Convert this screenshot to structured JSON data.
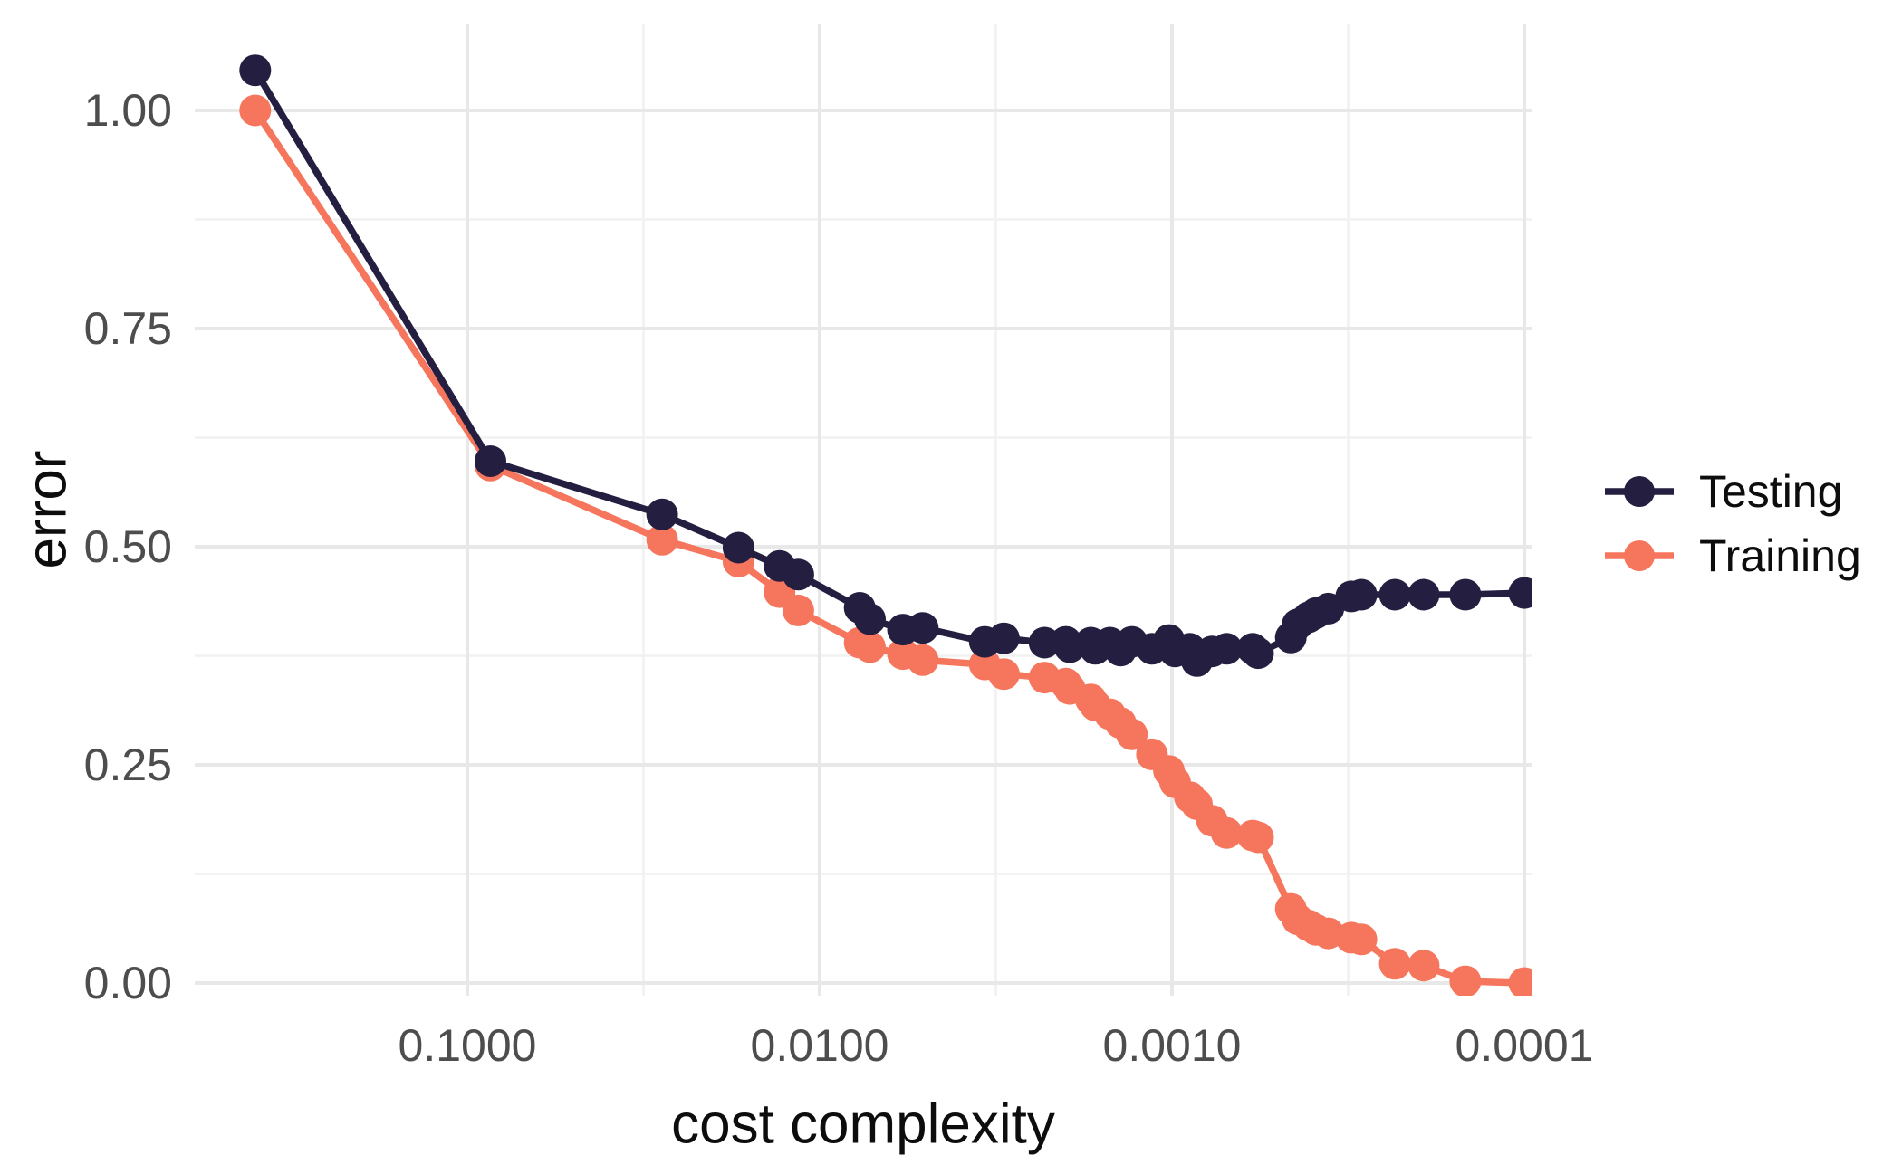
{
  "chart_data": {
    "type": "line",
    "title": "",
    "xlabel": "cost complexity",
    "ylabel": "error",
    "x_scale": "log10_reversed",
    "grid": true,
    "legend_position": "right",
    "x": [
      0.4,
      0.086,
      0.028,
      0.017,
      0.013,
      0.0115,
      0.0077,
      0.0072,
      0.0058,
      0.0051,
      0.0034,
      0.003,
      0.0023,
      0.002,
      0.00195,
      0.0017,
      0.00165,
      0.0015,
      0.0014,
      0.0013,
      0.00114,
      0.00102,
      0.00098,
      0.00089,
      0.00085,
      0.00077,
      0.0007,
      0.00059,
      0.00057,
      0.00046,
      0.00044,
      0.00041,
      0.00039,
      0.00036,
      0.00031,
      0.00029,
      0.000233,
      0.000193,
      0.000147,
      0.0001
    ],
    "series": [
      {
        "name": "Testing",
        "color": "#241e40",
        "values": [
          1.046,
          0.598,
          0.537,
          0.499,
          0.478,
          0.468,
          0.43,
          0.417,
          0.405,
          0.407,
          0.391,
          0.395,
          0.39,
          0.391,
          0.385,
          0.39,
          0.383,
          0.39,
          0.381,
          0.391,
          0.383,
          0.393,
          0.38,
          0.383,
          0.369,
          0.38,
          0.383,
          0.383,
          0.378,
          0.396,
          0.411,
          0.419,
          0.424,
          0.429,
          0.443,
          0.445,
          0.445,
          0.445,
          0.445,
          0.447
        ]
      },
      {
        "name": "Training",
        "color": "#f5765d",
        "values": [
          1.0,
          0.593,
          0.508,
          0.483,
          0.448,
          0.427,
          0.39,
          0.385,
          0.377,
          0.37,
          0.365,
          0.354,
          0.35,
          0.343,
          0.337,
          0.325,
          0.318,
          0.308,
          0.298,
          0.285,
          0.262,
          0.243,
          0.23,
          0.213,
          0.205,
          0.186,
          0.172,
          0.169,
          0.167,
          0.085,
          0.073,
          0.066,
          0.061,
          0.057,
          0.052,
          0.05,
          0.022,
          0.02,
          0.002,
          0.0
        ]
      }
    ],
    "x_ticks": {
      "values": [
        0.1,
        0.01,
        0.001,
        0.0001
      ],
      "labels": [
        "0.1000",
        "0.0100",
        "0.0010",
        "0.0001"
      ],
      "minor": [
        0.0316228,
        0.00316228,
        0.000316228
      ]
    },
    "y_ticks": {
      "values": [
        0,
        0.25,
        0.5,
        0.75,
        1.0
      ],
      "labels": [
        "0.00",
        "0.25",
        "0.50",
        "0.75",
        "1.00"
      ],
      "minor": [
        0.125,
        0.375,
        0.625,
        0.875
      ]
    },
    "xlim": [
      0.594,
      9.48e-05
    ],
    "ylim": [
      -0.015,
      1.098
    ],
    "colors": {
      "background": "#ffffff",
      "grid_major": "#e8e8e8",
      "grid_minor": "#f1f1f1",
      "tick_text": "#4d4d4d",
      "axis_title_text": "#0d0d0d"
    }
  }
}
